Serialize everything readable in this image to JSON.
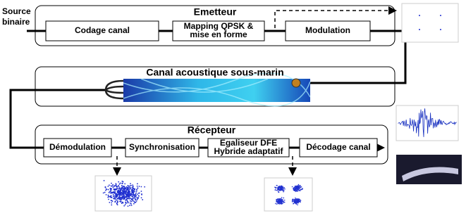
{
  "source": {
    "lines": [
      "Source",
      "binaire"
    ]
  },
  "emetteur": {
    "title": "Emetteur",
    "blocks": [
      {
        "lines": [
          "Codage canal"
        ]
      },
      {
        "lines": [
          "Mapping QPSK &",
          "mise en forme"
        ]
      },
      {
        "lines": [
          "Modulation"
        ]
      }
    ]
  },
  "canal": {
    "title": "Canal acoustique sous-marin"
  },
  "recepteur": {
    "title": "Récepteur",
    "blocks": [
      {
        "lines": [
          "Démodulation"
        ]
      },
      {
        "lines": [
          "Synchronisation"
        ]
      },
      {
        "lines": [
          "Egaliseur DFE",
          "Hybride adaptatif"
        ]
      },
      {
        "lines": [
          "Décodage canal"
        ]
      }
    ]
  }
}
